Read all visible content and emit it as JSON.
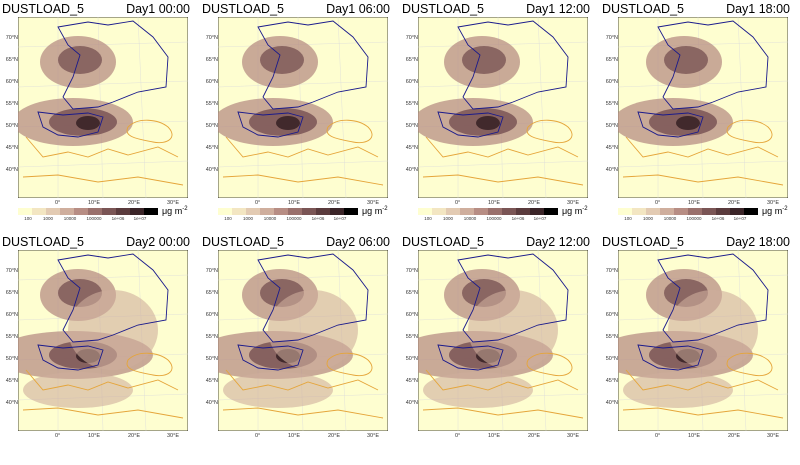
{
  "variable": "DUSTLOAD_5",
  "panels": [
    {
      "time": "Day1 00:00",
      "show_colorbar": true
    },
    {
      "time": "Day1 06:00",
      "show_colorbar": true
    },
    {
      "time": "Day1 12:00",
      "show_colorbar": true
    },
    {
      "time": "Day1 18:00",
      "show_colorbar": true
    },
    {
      "time": "Day2 00:00",
      "show_colorbar": false
    },
    {
      "time": "Day2 06:00",
      "show_colorbar": false
    },
    {
      "time": "Day2 12:00",
      "show_colorbar": false
    },
    {
      "time": "Day2 18:00",
      "show_colorbar": false
    }
  ],
  "lat_labels": [
    "70°N",
    "65°N",
    "60°N",
    "55°N",
    "50°N",
    "45°N",
    "40°N"
  ],
  "lon_labels": [
    "0°",
    "10°E",
    "20°E",
    "30°E"
  ],
  "colorbar": {
    "ticks": [
      "100",
      "1000",
      "10000",
      "100000",
      "1e+06",
      "1e+07"
    ],
    "unit": "μg m",
    "unit_exp": "-2",
    "colors": [
      "#fefed0",
      "#f3e6c2",
      "#e3cbb3",
      "#cfae9d",
      "#b78d84",
      "#99706c",
      "#7a5555",
      "#5a3b3d",
      "#3a2427",
      "#000000"
    ]
  },
  "colors": {
    "background": "#fefed0",
    "coast_blue": "#1a1a8c",
    "coast_orange": "#e5a53a"
  }
}
